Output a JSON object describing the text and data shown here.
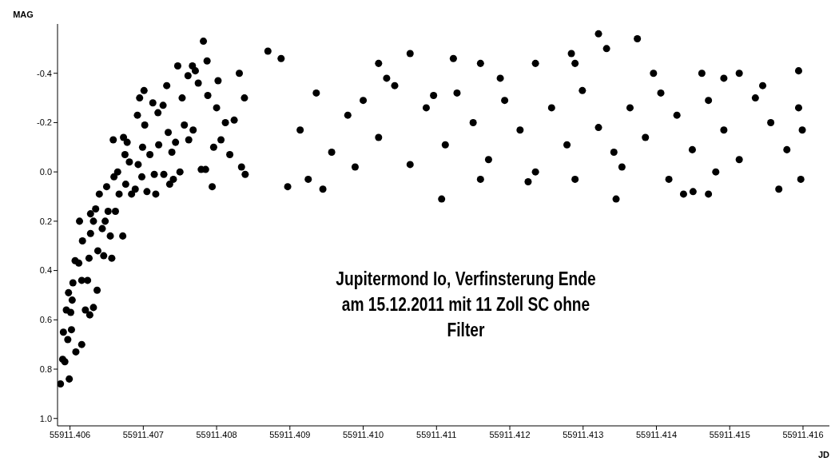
{
  "chart_data": {
    "type": "scatter",
    "xlabel": "JD",
    "ylabel": "MAG",
    "annotations": [
      "Jupitermond Io, Verfinsterung Ende am 15.12.2011 mit 11 Zoll SC ohne Filter"
    ],
    "xlim": [
      55911.40583,
      55911.41636
    ],
    "ylim": [
      1.03,
      -0.6
    ],
    "xticks": [
      55911.406,
      55911.407,
      55911.408,
      55911.409,
      {
        "value": 55911.41,
        "label": "55911.410"
      },
      55911.411,
      55911.412,
      55911.413,
      55911.414,
      55911.415,
      55911.416
    ],
    "yticks": [
      {
        "value": -0.4,
        "label": "-0.4"
      },
      {
        "value": -0.2,
        "label": "-0.2"
      },
      {
        "value": 0,
        "label": "0.0"
      },
      0.2,
      0.4,
      0.6,
      0.8,
      {
        "value": 1,
        "label": "1.0"
      }
    ],
    "grid": false,
    "marker": "circle",
    "series": [
      {
        "color": "#000000",
        "x": [
          55911.40587,
          55911.4059,
          55911.40593,
          55911.40591,
          55911.40597,
          55911.40599,
          55911.40602,
          55911.40608,
          55911.40595,
          55911.40601,
          55911.40603,
          55911.40598,
          55911.40604,
          55911.40607,
          55911.40612,
          55911.40613,
          55911.40617,
          55911.40616,
          55911.40621,
          55911.40616,
          55911.40627,
          55911.40624,
          55911.40626,
          55911.40628,
          55911.40628,
          55911.40637,
          55911.40632,
          55911.40638,
          55911.40632,
          55911.40635,
          55911.4064,
          55911.40644,
          55911.40646,
          55911.40648,
          55911.4065,
          55911.40652,
          55911.40655,
          55911.40657,
          55911.40659,
          55911.40662,
          55911.4066,
          55911.40665,
          55911.40667,
          55911.40672,
          55911.40673,
          55911.40675,
          55911.40676,
          55911.40678,
          55911.40681,
          55911.40684,
          55911.40689,
          55911.40692,
          55911.40693,
          55911.40695,
          55911.40698,
          55911.40699,
          55911.40701,
          55911.40702,
          55911.40705,
          55911.40709,
          55911.40713,
          55911.40715,
          55911.40717,
          55911.4072,
          55911.40721,
          55911.40727,
          55911.40728,
          55911.40732,
          55911.40734,
          55911.40736,
          55911.40739,
          55911.40741,
          55911.40744,
          55911.40747,
          55911.4075,
          55911.40753,
          55911.40756,
          55911.40761,
          55911.40762,
          55911.40767,
          55911.40768,
          55911.40771,
          55911.40775,
          55911.40779,
          55911.40782,
          55911.40785,
          55911.40787,
          55911.40788,
          55911.40794,
          55911.40796,
          55911.408,
          55911.40802,
          55911.40806,
          55911.40812,
          55911.40818,
          55911.40824,
          55911.40831,
          55911.40834,
          55911.40839,
          55911.40838,
          55911.41321,
          55911.41374,
          55911.41332,
          55911.41284,
          55911.41064,
          55911.4087,
          55911.40888,
          55911.41107,
          55911.41345,
          55911.41437,
          55911.4145,
          55911.41471,
          55911.40897,
          55911.40945,
          55911.41567,
          55911.41597,
          55911.41594,
          55911.41462,
          55911.41396,
          55911.41187,
          55911.41021,
          55911.40914,
          55911.40936,
          55911.40957,
          55911.40979,
          55911.41,
          55911.41021,
          55911.41043,
          55911.41064,
          55911.41086,
          55911.41112,
          55911.41128,
          55911.4115,
          55911.41171,
          55911.41193,
          55911.41214,
          55911.41235,
          55911.41257,
          55911.41278,
          55911.41299,
          55911.41321,
          55911.41342,
          55911.41364,
          55911.41385,
          55911.41406,
          55911.41428,
          55911.41449,
          55911.41471,
          55911.41492,
          55911.41513,
          55911.41535,
          55911.41556,
          55911.41578,
          55911.41594,
          55911.41599,
          55911.40925,
          55911.40989,
          55911.41032,
          55911.41096,
          55911.4116,
          55911.41225,
          55911.41289,
          55911.41353,
          55911.41417,
          55911.41481,
          55911.41545,
          55911.41289,
          55911.41235,
          55911.4116,
          55911.41123,
          55911.41492,
          55911.41513
        ],
        "values": [
          0.86,
          0.76,
          0.77,
          0.65,
          0.68,
          0.84,
          0.64,
          0.73,
          0.56,
          0.57,
          0.52,
          0.49,
          0.45,
          0.36,
          0.37,
          0.2,
          0.28,
          0.44,
          0.56,
          0.7,
          0.58,
          0.44,
          0.35,
          0.25,
          0.17,
          0.48,
          0.55,
          0.32,
          0.2,
          0.15,
          0.09,
          0.23,
          0.34,
          0.2,
          0.06,
          0.16,
          0.26,
          0.35,
          -0.13,
          0.16,
          0.02,
          0.0,
          0.09,
          0.26,
          -0.14,
          -0.07,
          0.05,
          -0.12,
          -0.04,
          0.09,
          0.07,
          -0.23,
          -0.03,
          -0.3,
          0.02,
          -0.1,
          -0.33,
          -0.19,
          0.08,
          -0.07,
          -0.28,
          0.01,
          0.09,
          -0.24,
          -0.11,
          -0.27,
          0.01,
          -0.35,
          -0.16,
          0.05,
          -0.08,
          0.03,
          -0.12,
          -0.43,
          0.0,
          -0.3,
          -0.19,
          -0.39,
          -0.13,
          -0.43,
          -0.17,
          -0.41,
          -0.36,
          -0.01,
          -0.53,
          -0.01,
          -0.45,
          -0.31,
          0.06,
          -0.1,
          -0.26,
          -0.37,
          -0.13,
          -0.2,
          -0.07,
          -0.21,
          -0.4,
          -0.02,
          0.01,
          -0.3,
          -0.56,
          -0.54,
          -0.5,
          -0.48,
          -0.48,
          -0.49,
          -0.46,
          0.11,
          0.11,
          0.09,
          0.08,
          0.09,
          0.06,
          0.07,
          0.07,
          0.03,
          -0.41,
          -0.4,
          -0.4,
          -0.38,
          -0.44,
          -0.17,
          -0.32,
          -0.08,
          -0.23,
          -0.29,
          -0.14,
          -0.35,
          -0.03,
          -0.26,
          -0.11,
          -0.32,
          -0.2,
          -0.05,
          -0.29,
          -0.17,
          0.0,
          -0.26,
          -0.11,
          -0.33,
          -0.18,
          -0.08,
          -0.26,
          -0.14,
          -0.32,
          -0.23,
          -0.09,
          -0.29,
          -0.17,
          -0.05,
          -0.3,
          -0.2,
          -0.09,
          -0.26,
          -0.17,
          0.03,
          -0.02,
          -0.38,
          -0.31,
          0.03,
          0.04,
          0.03,
          -0.02,
          0.03,
          0.0,
          -0.35,
          -0.44,
          -0.44,
          -0.44,
          -0.46,
          -0.38,
          -0.4
        ]
      }
    ]
  }
}
